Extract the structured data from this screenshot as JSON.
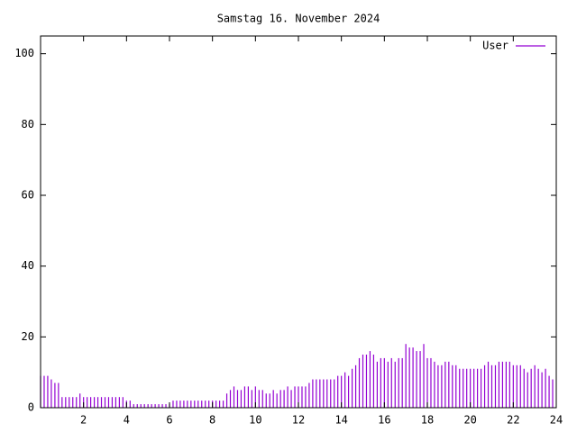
{
  "chart_data": {
    "type": "impulse",
    "title": "Samstag 16. November 2024",
    "xlim": [
      0,
      24
    ],
    "xticks": [
      2,
      4,
      6,
      8,
      10,
      12,
      14,
      16,
      18,
      20,
      22,
      24
    ],
    "ylim": [
      0,
      105
    ],
    "yticks": [
      0,
      20,
      40,
      60,
      80,
      100
    ],
    "legend": "top-right",
    "x": [
      0,
      0.167,
      0.333,
      0.5,
      0.667,
      0.833,
      1,
      1.167,
      1.333,
      1.5,
      1.667,
      1.833,
      2,
      2.167,
      2.333,
      2.5,
      2.667,
      2.833,
      3,
      3.167,
      3.333,
      3.5,
      3.667,
      3.833,
      4,
      4.167,
      4.333,
      4.5,
      4.667,
      4.833,
      5,
      5.167,
      5.333,
      5.5,
      5.667,
      5.833,
      6,
      6.167,
      6.333,
      6.5,
      6.667,
      6.833,
      7,
      7.167,
      7.333,
      7.5,
      7.667,
      7.833,
      8,
      8.167,
      8.333,
      8.5,
      8.667,
      8.833,
      9,
      9.167,
      9.333,
      9.5,
      9.667,
      9.833,
      10,
      10.167,
      10.333,
      10.5,
      10.667,
      10.833,
      11,
      11.167,
      11.333,
      11.5,
      11.667,
      11.833,
      12,
      12.167,
      12.333,
      12.5,
      12.667,
      12.833,
      13,
      13.167,
      13.333,
      13.5,
      13.667,
      13.833,
      14,
      14.167,
      14.333,
      14.5,
      14.667,
      14.833,
      15,
      15.167,
      15.333,
      15.5,
      15.667,
      15.833,
      16,
      16.167,
      16.333,
      16.5,
      16.667,
      16.833,
      17,
      17.167,
      17.333,
      17.5,
      17.667,
      17.833,
      18,
      18.167,
      18.333,
      18.5,
      18.667,
      18.833,
      19,
      19.167,
      19.333,
      19.5,
      19.667,
      19.833,
      20,
      20.167,
      20.333,
      20.5,
      20.667,
      20.833,
      21,
      21.167,
      21.333,
      21.5,
      21.667,
      21.833,
      22,
      22.167,
      22.333,
      22.5,
      22.667,
      22.833,
      23,
      23.167,
      23.333,
      23.5,
      23.667,
      23.833
    ],
    "series": [
      {
        "name": "User",
        "color": "#9400d3",
        "values": [
          9,
          9,
          9,
          8,
          7,
          7,
          3,
          3,
          3,
          3,
          3,
          4,
          3,
          3,
          3,
          3,
          3,
          3,
          3,
          3,
          3,
          3,
          3,
          3,
          2,
          2,
          1,
          1,
          1,
          1,
          1,
          1,
          1,
          1,
          1,
          1,
          1,
          2,
          2,
          2,
          2,
          2,
          2,
          2,
          2,
          2,
          2,
          2,
          2,
          2,
          2,
          2,
          4,
          5,
          6,
          5,
          5,
          6,
          6,
          5,
          6,
          5,
          5,
          4,
          4,
          5,
          4,
          5,
          5,
          6,
          5,
          6,
          6,
          6,
          6,
          7,
          8,
          8,
          8,
          8,
          8,
          8,
          8,
          9,
          9,
          10,
          9,
          11,
          12,
          14,
          15,
          15,
          16,
          15,
          13,
          14,
          14,
          13,
          14,
          13,
          14,
          14,
          18,
          17,
          17,
          16,
          16,
          18,
          14,
          14,
          13,
          12,
          12,
          13,
          13,
          12,
          12,
          11,
          11,
          11,
          11,
          11,
          11,
          11,
          12,
          13,
          12,
          12,
          13,
          13,
          13,
          13,
          12,
          12,
          12,
          11,
          10,
          11,
          12,
          11,
          10,
          11,
          9,
          8
        ]
      }
    ]
  }
}
